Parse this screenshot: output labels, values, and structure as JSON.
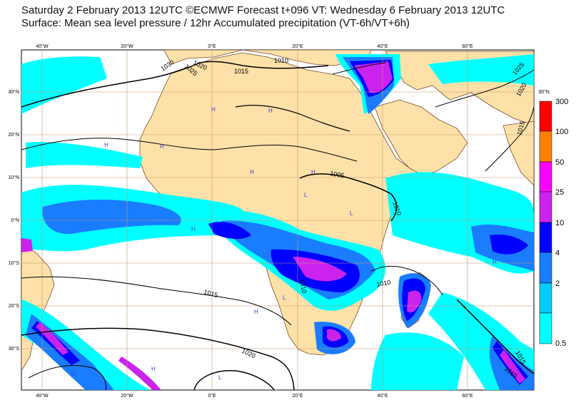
{
  "title_line1": "Saturday 2 February 2013 12UTC ©ECMWF Forecast t+096 VT: Wednesday 6 February 2013 12UTC",
  "title_line2": "Surface: Mean sea level pressure / 12hr Accumulated precipitation (VT-6h/VT+6h)",
  "lon_labels": [
    "40°W",
    "20°W",
    "0°E",
    "20°E",
    "40°E",
    "60°E"
  ],
  "lat_labels_left": [
    "30°N",
    "20°N",
    "10°N",
    "0°N",
    "10°S",
    "20°S",
    "30°S"
  ],
  "lat_label_right": "30°N",
  "isobar_labels": [
    "1030",
    "1020",
    "1025",
    "1015",
    "1010",
    "1005",
    "1010",
    "1015",
    "1010",
    "1010",
    "1020",
    "1015",
    "1010",
    "1025",
    "1020",
    "1015"
  ],
  "pressure_centres": [
    "H",
    "H",
    "H",
    "H",
    "H",
    "H",
    "L",
    "L",
    "H",
    "H",
    "L",
    "H",
    "L",
    "H",
    "H"
  ],
  "legend": {
    "levels": [
      "300",
      "100",
      "50",
      "25",
      "10",
      "4",
      "2",
      "0.5"
    ],
    "colors": [
      "#ff0000",
      "#ff8000",
      "#ff00ff",
      "#cc22ee",
      "#0000ff",
      "#1a7cff",
      "#00ccff",
      "#00ffff"
    ]
  },
  "colors": {
    "land": "#fde1a9",
    "ocean": "#ffffff",
    "grid": "#c8956a",
    "isobar": "#000000"
  }
}
